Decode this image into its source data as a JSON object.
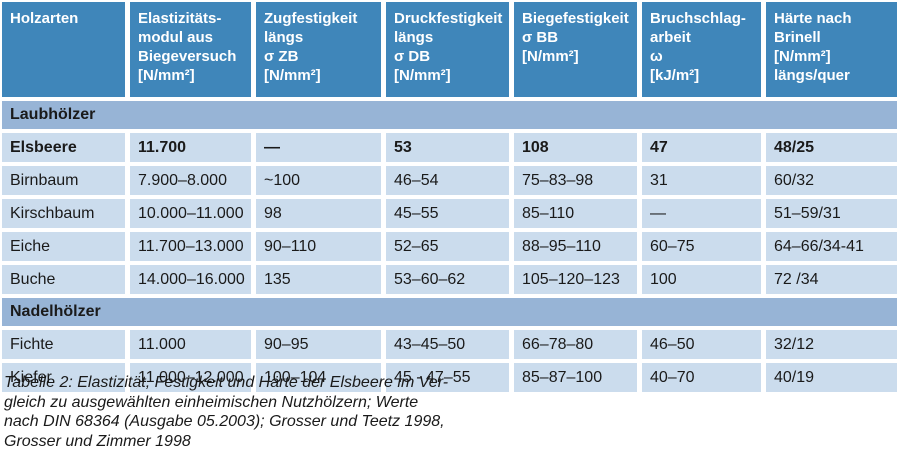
{
  "colors": {
    "header_bg": "#3f86ba",
    "header_text": "#ffffff",
    "section_bg": "#97b4d6",
    "row_bg": "#cbdced",
    "text_dark": "#1a1a1a",
    "page_bg": "#ffffff"
  },
  "table": {
    "columns": [
      {
        "id": "holzarten",
        "label": "Holzarten"
      },
      {
        "id": "elastizitaetsmodul",
        "label": "Elastizitäts-\nmodul aus\nBiegeversuch\n[N/mm²]"
      },
      {
        "id": "zugfestigkeit",
        "label": "Zugfestigkeit\nlängs\nσ ZB\n[N/mm²]"
      },
      {
        "id": "druckfestigkeit",
        "label": "Druckfestigkeit\nlängs\nσ DB\n[N/mm²]"
      },
      {
        "id": "biegefestigkeit",
        "label": "Biegefestigkeit\nσ BB\n[N/mm²]"
      },
      {
        "id": "bruchschlagarbeit",
        "label": "Bruchschlag-\narbeit\nω\n[kJ/m²]"
      },
      {
        "id": "haerte",
        "label": "Härte nach\nBrinell\n[N/mm²]\nlängs/quer"
      }
    ],
    "sections": [
      {
        "label": "Laubhölzer",
        "rows": [
          {
            "bold": true,
            "cells": [
              "Elsbeere",
              "11.700",
              "—",
              "53",
              "108",
              "47",
              "48/25"
            ]
          },
          {
            "bold": false,
            "cells": [
              "Birnbaum",
              "7.900–8.000",
              "~100",
              "46–54",
              "75–83–98",
              "31",
              "60/32"
            ]
          },
          {
            "bold": false,
            "cells": [
              "Kirschbaum",
              "10.000–11.000",
              "98",
              "45–55",
              "85–110",
              "—",
              "51–59/31"
            ]
          },
          {
            "bold": false,
            "cells": [
              "Eiche",
              "11.700–13.000",
              "90–110",
              "52–65",
              "88–95–110",
              "60–75",
              "64–66/34-41"
            ]
          },
          {
            "bold": false,
            "cells": [
              "Buche",
              "14.000–16.000",
              "135",
              "53–60–62",
              "105–120–123",
              "100",
              "72 /34"
            ]
          }
        ]
      },
      {
        "label": "Nadelhölzer",
        "rows": [
          {
            "bold": false,
            "cells": [
              "Fichte",
              "11.000",
              "90–95",
              "43–45–50",
              "66–78–80",
              "46–50",
              "32/12"
            ]
          },
          {
            "bold": false,
            "cells": [
              "Kiefer",
              "11.000–12.000",
              "100–104",
              "45 - 47–55",
              "85–87–100",
              "40–70",
              "40/19"
            ]
          }
        ]
      }
    ]
  },
  "caption": "Tabelle 2: Elastizität, Festigkeit und Härte der Elsbeere im Ver-\ngleich zu ausgewählten einheimischen Nutzhölzern; Werte\nnach DIN 68364 (Ausgabe 05.2003); Grosser und Teetz 1998,\nGrosser und Zimmer 1998"
}
